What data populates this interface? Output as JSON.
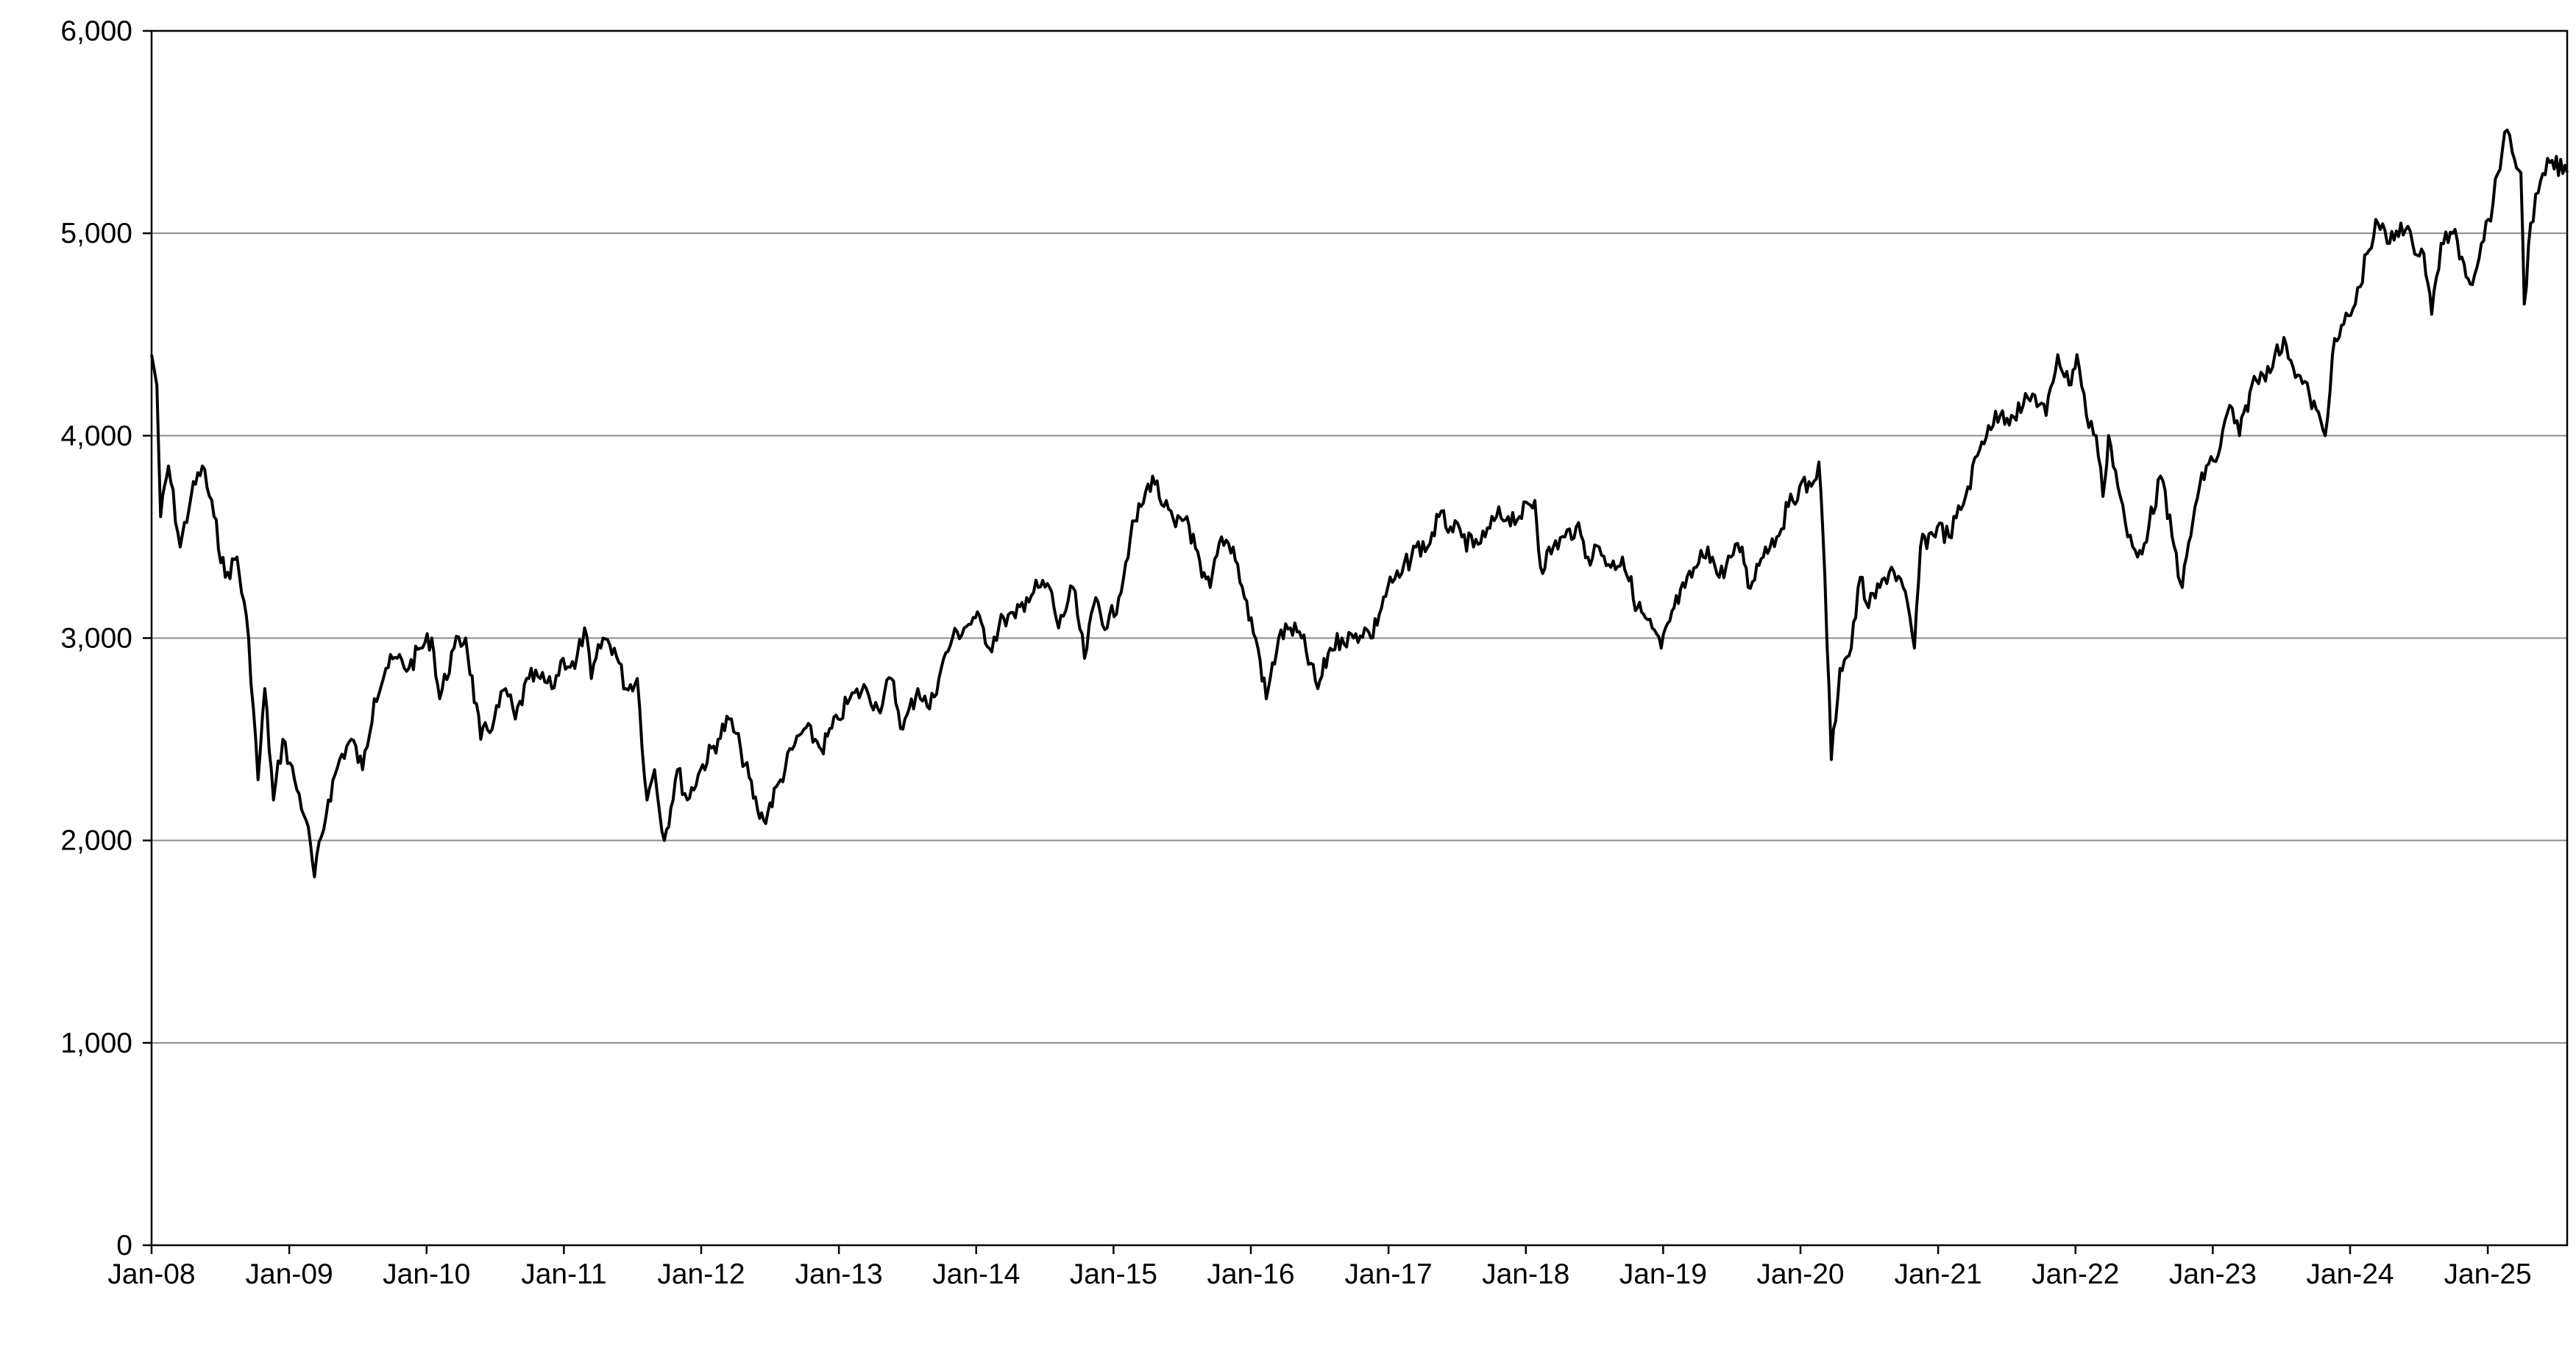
{
  "chart_data": {
    "type": "line",
    "title": "",
    "xlabel": "",
    "ylabel": "",
    "ylim": [
      0,
      6000
    ],
    "xlim": [
      "2008-01-01",
      "2025-07-31"
    ],
    "grid": true,
    "y_ticks": [
      0,
      1000,
      2000,
      3000,
      4000,
      5000,
      6000
    ],
    "y_tick_labels": [
      "0",
      "1,000",
      "2,000",
      "3,000",
      "4,000",
      "5,000",
      "6,000"
    ],
    "x_ticks": [
      "2008-01-01",
      "2009-01-01",
      "2010-01-01",
      "2011-01-01",
      "2012-01-01",
      "2013-01-01",
      "2014-01-01",
      "2015-01-01",
      "2016-01-01",
      "2017-01-01",
      "2018-01-01",
      "2019-01-01",
      "2020-01-01",
      "2021-01-01",
      "2022-01-01",
      "2023-01-01",
      "2024-01-01",
      "2025-01-01"
    ],
    "x_tick_labels": [
      "Jan-08",
      "Jan-09",
      "Jan-10",
      "Jan-11",
      "Jan-12",
      "Jan-13",
      "Jan-14",
      "Jan-15",
      "Jan-16",
      "Jan-17",
      "Jan-18",
      "Jan-19",
      "Jan-20",
      "Jan-21",
      "Jan-22",
      "Jan-23",
      "Jan-24",
      "Jan-25"
    ],
    "series": [
      {
        "values": [
          [
            "2008-01-01",
            4400
          ],
          [
            "2008-01-15",
            4250
          ],
          [
            "2008-01-25",
            3600
          ],
          [
            "2008-02-15",
            3850
          ],
          [
            "2008-03-17",
            3450
          ],
          [
            "2008-04-15",
            3700
          ],
          [
            "2008-05-15",
            3850
          ],
          [
            "2008-06-15",
            3600
          ],
          [
            "2008-07-15",
            3300
          ],
          [
            "2008-08-15",
            3400
          ],
          [
            "2008-09-15",
            3000
          ],
          [
            "2008-10-10",
            2300
          ],
          [
            "2008-10-28",
            2750
          ],
          [
            "2008-11-20",
            2200
          ],
          [
            "2008-12-15",
            2500
          ],
          [
            "2009-01-15",
            2300
          ],
          [
            "2009-02-15",
            2100
          ],
          [
            "2009-03-09",
            1820
          ],
          [
            "2009-04-15",
            2200
          ],
          [
            "2009-05-15",
            2400
          ],
          [
            "2009-06-15",
            2500
          ],
          [
            "2009-07-15",
            2350
          ],
          [
            "2009-08-15",
            2700
          ],
          [
            "2009-09-15",
            2850
          ],
          [
            "2009-10-15",
            2900
          ],
          [
            "2009-11-15",
            2850
          ],
          [
            "2009-12-15",
            2950
          ],
          [
            "2010-01-15",
            3000
          ],
          [
            "2010-02-05",
            2700
          ],
          [
            "2010-03-15",
            2950
          ],
          [
            "2010-04-15",
            3000
          ],
          [
            "2010-05-25",
            2500
          ],
          [
            "2010-06-30",
            2600
          ],
          [
            "2010-07-30",
            2750
          ],
          [
            "2010-08-25",
            2600
          ],
          [
            "2010-09-30",
            2800
          ],
          [
            "2010-10-30",
            2800
          ],
          [
            "2010-11-30",
            2750
          ],
          [
            "2010-12-30",
            2900
          ],
          [
            "2011-01-30",
            2850
          ],
          [
            "2011-02-25",
            3050
          ],
          [
            "2011-03-15",
            2800
          ],
          [
            "2011-04-15",
            3000
          ],
          [
            "2011-05-15",
            2950
          ],
          [
            "2011-06-15",
            2750
          ],
          [
            "2011-07-15",
            2800
          ],
          [
            "2011-08-10",
            2200
          ],
          [
            "2011-08-30",
            2350
          ],
          [
            "2011-09-25",
            2000
          ],
          [
            "2011-10-30",
            2350
          ],
          [
            "2011-11-25",
            2200
          ],
          [
            "2011-12-30",
            2350
          ],
          [
            "2012-02-15",
            2500
          ],
          [
            "2012-03-15",
            2600
          ],
          [
            "2012-04-15",
            2450
          ],
          [
            "2012-05-30",
            2150
          ],
          [
            "2012-06-15",
            2100
          ],
          [
            "2012-07-30",
            2300
          ],
          [
            "2012-08-30",
            2450
          ],
          [
            "2012-09-30",
            2550
          ],
          [
            "2012-10-30",
            2500
          ],
          [
            "2012-11-15",
            2450
          ],
          [
            "2012-12-30",
            2600
          ],
          [
            "2013-01-30",
            2700
          ],
          [
            "2013-03-15",
            2750
          ],
          [
            "2013-04-15",
            2650
          ],
          [
            "2013-05-20",
            2800
          ],
          [
            "2013-06-20",
            2550
          ],
          [
            "2013-07-30",
            2750
          ],
          [
            "2013-08-30",
            2650
          ],
          [
            "2013-09-30",
            2850
          ],
          [
            "2013-10-30",
            3000
          ],
          [
            "2013-11-30",
            3050
          ],
          [
            "2013-12-30",
            3100
          ],
          [
            "2014-01-20",
            3050
          ],
          [
            "2014-02-05",
            2950
          ],
          [
            "2014-03-15",
            3100
          ],
          [
            "2014-04-15",
            3100
          ],
          [
            "2014-05-15",
            3200
          ],
          [
            "2014-06-15",
            3250
          ],
          [
            "2014-07-15",
            3250
          ],
          [
            "2014-08-08",
            3050
          ],
          [
            "2014-09-15",
            3250
          ],
          [
            "2014-10-16",
            2900
          ],
          [
            "2014-11-15",
            3200
          ],
          [
            "2014-12-15",
            3050
          ],
          [
            "2015-01-15",
            3200
          ],
          [
            "2015-02-15",
            3500
          ],
          [
            "2015-03-15",
            3650
          ],
          [
            "2015-04-15",
            3800
          ],
          [
            "2015-05-15",
            3650
          ],
          [
            "2015-06-15",
            3550
          ],
          [
            "2015-07-15",
            3600
          ],
          [
            "2015-08-24",
            3300
          ],
          [
            "2015-09-15",
            3250
          ],
          [
            "2015-10-15",
            3500
          ],
          [
            "2015-11-15",
            3450
          ],
          [
            "2015-12-15",
            3200
          ],
          [
            "2016-01-20",
            2950
          ],
          [
            "2016-02-11",
            2700
          ],
          [
            "2016-03-15",
            3000
          ],
          [
            "2016-04-15",
            3050
          ],
          [
            "2016-05-15",
            3000
          ],
          [
            "2016-06-27",
            2750
          ],
          [
            "2016-07-30",
            2950
          ],
          [
            "2016-08-30",
            3000
          ],
          [
            "2016-09-30",
            3000
          ],
          [
            "2016-10-30",
            3050
          ],
          [
            "2016-11-15",
            3000
          ],
          [
            "2016-12-30",
            3250
          ],
          [
            "2017-01-30",
            3300
          ],
          [
            "2017-03-15",
            3450
          ],
          [
            "2017-04-15",
            3450
          ],
          [
            "2017-05-15",
            3600
          ],
          [
            "2017-06-15",
            3550
          ],
          [
            "2017-07-15",
            3500
          ],
          [
            "2017-08-15",
            3450
          ],
          [
            "2017-09-15",
            3500
          ],
          [
            "2017-10-15",
            3600
          ],
          [
            "2017-11-15",
            3600
          ],
          [
            "2017-12-15",
            3600
          ],
          [
            "2018-01-25",
            3680
          ],
          [
            "2018-02-09",
            3350
          ],
          [
            "2018-03-15",
            3450
          ],
          [
            "2018-04-15",
            3500
          ],
          [
            "2018-05-15",
            3550
          ],
          [
            "2018-06-15",
            3400
          ],
          [
            "2018-07-15",
            3450
          ],
          [
            "2018-08-15",
            3350
          ],
          [
            "2018-09-15",
            3400
          ],
          [
            "2018-10-25",
            3150
          ],
          [
            "2018-11-15",
            3100
          ],
          [
            "2018-12-27",
            2950
          ],
          [
            "2019-01-30",
            3150
          ],
          [
            "2019-02-28",
            3250
          ],
          [
            "2019-03-30",
            3350
          ],
          [
            "2019-04-30",
            3450
          ],
          [
            "2019-05-30",
            3300
          ],
          [
            "2019-06-30",
            3400
          ],
          [
            "2019-07-30",
            3450
          ],
          [
            "2019-08-15",
            3250
          ],
          [
            "2019-09-30",
            3450
          ],
          [
            "2019-10-30",
            3500
          ],
          [
            "2019-11-30",
            3650
          ],
          [
            "2019-12-30",
            3750
          ],
          [
            "2020-01-30",
            3750
          ],
          [
            "2020-02-19",
            3870
          ],
          [
            "2020-03-06",
            3300
          ],
          [
            "2020-03-23",
            2400
          ],
          [
            "2020-04-15",
            2850
          ],
          [
            "2020-05-15",
            2950
          ],
          [
            "2020-06-08",
            3300
          ],
          [
            "2020-06-30",
            3150
          ],
          [
            "2020-07-30",
            3250
          ],
          [
            "2020-08-30",
            3350
          ],
          [
            "2020-09-30",
            3250
          ],
          [
            "2020-10-30",
            2950
          ],
          [
            "2020-11-15",
            3450
          ],
          [
            "2020-12-30",
            3550
          ],
          [
            "2021-01-30",
            3500
          ],
          [
            "2021-03-15",
            3700
          ],
          [
            "2021-04-15",
            3900
          ],
          [
            "2021-05-15",
            4050
          ],
          [
            "2021-06-15",
            4100
          ],
          [
            "2021-07-15",
            4100
          ],
          [
            "2021-08-15",
            4150
          ],
          [
            "2021-09-15",
            4200
          ],
          [
            "2021-10-15",
            4100
          ],
          [
            "2021-11-15",
            4400
          ],
          [
            "2021-12-15",
            4250
          ],
          [
            "2022-01-05",
            4400
          ],
          [
            "2022-01-30",
            4100
          ],
          [
            "2022-02-25",
            4000
          ],
          [
            "2022-03-15",
            3700
          ],
          [
            "2022-03-30",
            4000
          ],
          [
            "2022-04-30",
            3700
          ],
          [
            "2022-05-20",
            3500
          ],
          [
            "2022-06-15",
            3400
          ],
          [
            "2022-07-15",
            3550
          ],
          [
            "2022-08-15",
            3800
          ],
          [
            "2022-09-15",
            3500
          ],
          [
            "2022-10-12",
            3250
          ],
          [
            "2022-11-15",
            3650
          ],
          [
            "2022-12-15",
            3850
          ],
          [
            "2023-01-15",
            3900
          ],
          [
            "2023-02-15",
            4150
          ],
          [
            "2023-03-13",
            4000
          ],
          [
            "2023-04-15",
            4250
          ],
          [
            "2023-05-15",
            4300
          ],
          [
            "2023-06-15",
            4400
          ],
          [
            "2023-07-15",
            4450
          ],
          [
            "2023-08-15",
            4300
          ],
          [
            "2023-09-15",
            4200
          ],
          [
            "2023-10-27",
            4000
          ],
          [
            "2023-11-15",
            4400
          ],
          [
            "2023-12-15",
            4550
          ],
          [
            "2024-01-15",
            4650
          ],
          [
            "2024-02-15",
            4900
          ],
          [
            "2024-03-15",
            5050
          ],
          [
            "2024-04-15",
            4950
          ],
          [
            "2024-05-15",
            5050
          ],
          [
            "2024-06-15",
            4950
          ],
          [
            "2024-07-15",
            4900
          ],
          [
            "2024-08-05",
            4600
          ],
          [
            "2024-08-30",
            4950
          ],
          [
            "2024-09-30",
            5000
          ],
          [
            "2024-10-30",
            4850
          ],
          [
            "2024-11-15",
            4750
          ],
          [
            "2024-12-15",
            4950
          ],
          [
            "2025-01-15",
            5150
          ],
          [
            "2025-02-15",
            5500
          ],
          [
            "2025-03-07",
            5400
          ],
          [
            "2025-03-30",
            5300
          ],
          [
            "2025-04-08",
            4650
          ],
          [
            "2025-04-25",
            5050
          ],
          [
            "2025-05-15",
            5200
          ],
          [
            "2025-06-15",
            5350
          ],
          [
            "2025-07-31",
            5300
          ]
        ]
      }
    ]
  }
}
